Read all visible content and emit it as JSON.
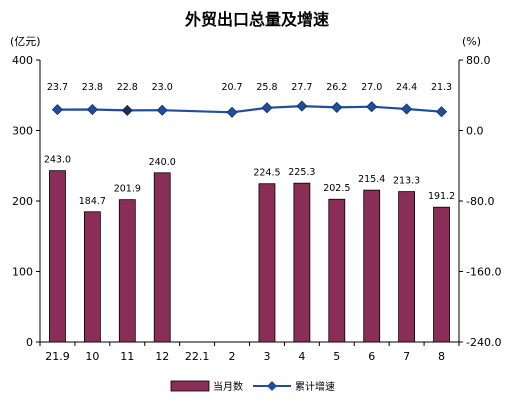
{
  "chart_data": {
    "type": "bar",
    "title": "外贸出口总量及增速",
    "left_unit": "(亿元)",
    "right_unit": "(%)",
    "categories": [
      "21.9",
      "10",
      "11",
      "12",
      "22.1",
      "2",
      "3",
      "4",
      "5",
      "6",
      "7",
      "8"
    ],
    "left_axis": {
      "min": 0,
      "max": 400,
      "ticks": [
        "0",
        "100",
        "200",
        "300",
        "400"
      ],
      "tick_values": [
        0,
        100,
        200,
        300,
        400
      ]
    },
    "right_axis": {
      "min": -240,
      "max": 80,
      "ticks": [
        "-240.0",
        "-160.0",
        "-80.0",
        "0.0",
        "80.0"
      ],
      "tick_values": [
        -240,
        -160,
        -80,
        0,
        80
      ]
    },
    "grid": false,
    "legend_position": "bottom",
    "series": [
      {
        "name": "当月数",
        "type": "bar",
        "axis": "left",
        "color": "#8b2e57",
        "values": [
          243.0,
          184.7,
          201.9,
          240.0,
          null,
          null,
          224.5,
          225.3,
          202.5,
          215.4,
          213.3,
          191.2
        ],
        "labels": [
          "243.0",
          "184.7",
          "201.9",
          "240.0",
          "",
          "",
          "224.5",
          "225.3",
          "202.5",
          "215.4",
          "213.3",
          "191.2"
        ]
      },
      {
        "name": "累计增速",
        "type": "line",
        "axis": "right",
        "color": "#1f4e9e",
        "values": [
          23.7,
          23.8,
          22.8,
          23.0,
          null,
          20.7,
          25.8,
          27.7,
          26.2,
          27.0,
          24.4,
          21.3
        ],
        "labels": [
          "23.7",
          "23.8",
          "22.8",
          "23.0",
          "",
          "20.7",
          "25.8",
          "27.7",
          "26.2",
          "27.0",
          "24.4",
          "21.3"
        ]
      }
    ]
  }
}
